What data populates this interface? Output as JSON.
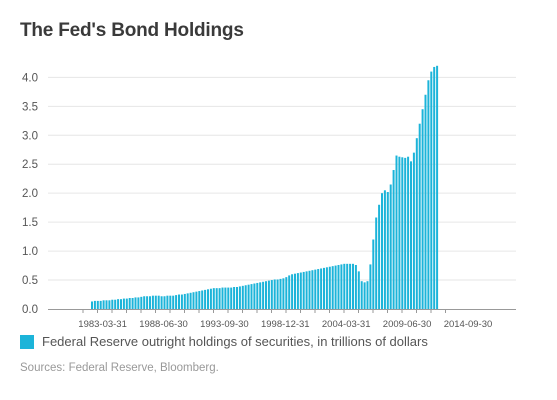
{
  "title": "The Fed's Bond Holdings",
  "legend_label": "Federal Reserve outright holdings of securities, in trillions of dollars",
  "source": "Sources: Federal Reserve, Bloomberg.",
  "colors": {
    "bar": "#1cb4d9",
    "grid": "#e6e6e6",
    "axis": "#999999"
  },
  "chart_data": {
    "type": "bar",
    "title": "The Fed's Bond Holdings",
    "xlabel": "",
    "ylabel": "",
    "ylim": [
      0,
      4.3
    ],
    "yticks": [
      0.0,
      0.5,
      1.0,
      1.5,
      2.0,
      2.5,
      3.0,
      3.5,
      4.0
    ],
    "ytick_labels": [
      "0.0",
      "0.5",
      "1.0",
      "1.5",
      "2.0",
      "2.5",
      "3.0",
      "3.5",
      "4.0"
    ],
    "xtick_labels": [
      "1983-03-31",
      "1988-06-30",
      "1993-09-30",
      "1998-12-31",
      "2004-03-31",
      "2009-06-30",
      "2014-09-30"
    ],
    "xtick_index": [
      4,
      25,
      46,
      67,
      88,
      109,
      130
    ],
    "grid": true,
    "legend_position": "bottom-left",
    "series": [
      {
        "name": "Federal Reserve outright holdings of securities, in trillions of dollars",
        "values": [
          0.13,
          0.14,
          0.14,
          0.14,
          0.15,
          0.15,
          0.15,
          0.16,
          0.16,
          0.17,
          0.17,
          0.18,
          0.18,
          0.19,
          0.19,
          0.2,
          0.2,
          0.21,
          0.22,
          0.22,
          0.22,
          0.23,
          0.23,
          0.23,
          0.22,
          0.22,
          0.23,
          0.23,
          0.23,
          0.24,
          0.25,
          0.25,
          0.26,
          0.27,
          0.28,
          0.29,
          0.3,
          0.31,
          0.32,
          0.33,
          0.34,
          0.35,
          0.36,
          0.36,
          0.36,
          0.37,
          0.37,
          0.37,
          0.37,
          0.38,
          0.38,
          0.39,
          0.4,
          0.41,
          0.42,
          0.43,
          0.44,
          0.45,
          0.46,
          0.47,
          0.48,
          0.49,
          0.5,
          0.51,
          0.51,
          0.52,
          0.53,
          0.55,
          0.58,
          0.6,
          0.61,
          0.62,
          0.63,
          0.64,
          0.65,
          0.66,
          0.67,
          0.68,
          0.69,
          0.7,
          0.71,
          0.72,
          0.73,
          0.74,
          0.75,
          0.76,
          0.77,
          0.78,
          0.78,
          0.78,
          0.78,
          0.76,
          0.65,
          0.48,
          0.46,
          0.48,
          0.77,
          1.2,
          1.58,
          1.8,
          2.0,
          2.05,
          2.02,
          2.15,
          2.4,
          2.65,
          2.63,
          2.62,
          2.61,
          2.63,
          2.55,
          2.7,
          2.95,
          3.2,
          3.45,
          3.7,
          3.95,
          4.1,
          4.18,
          4.2
        ]
      }
    ]
  }
}
